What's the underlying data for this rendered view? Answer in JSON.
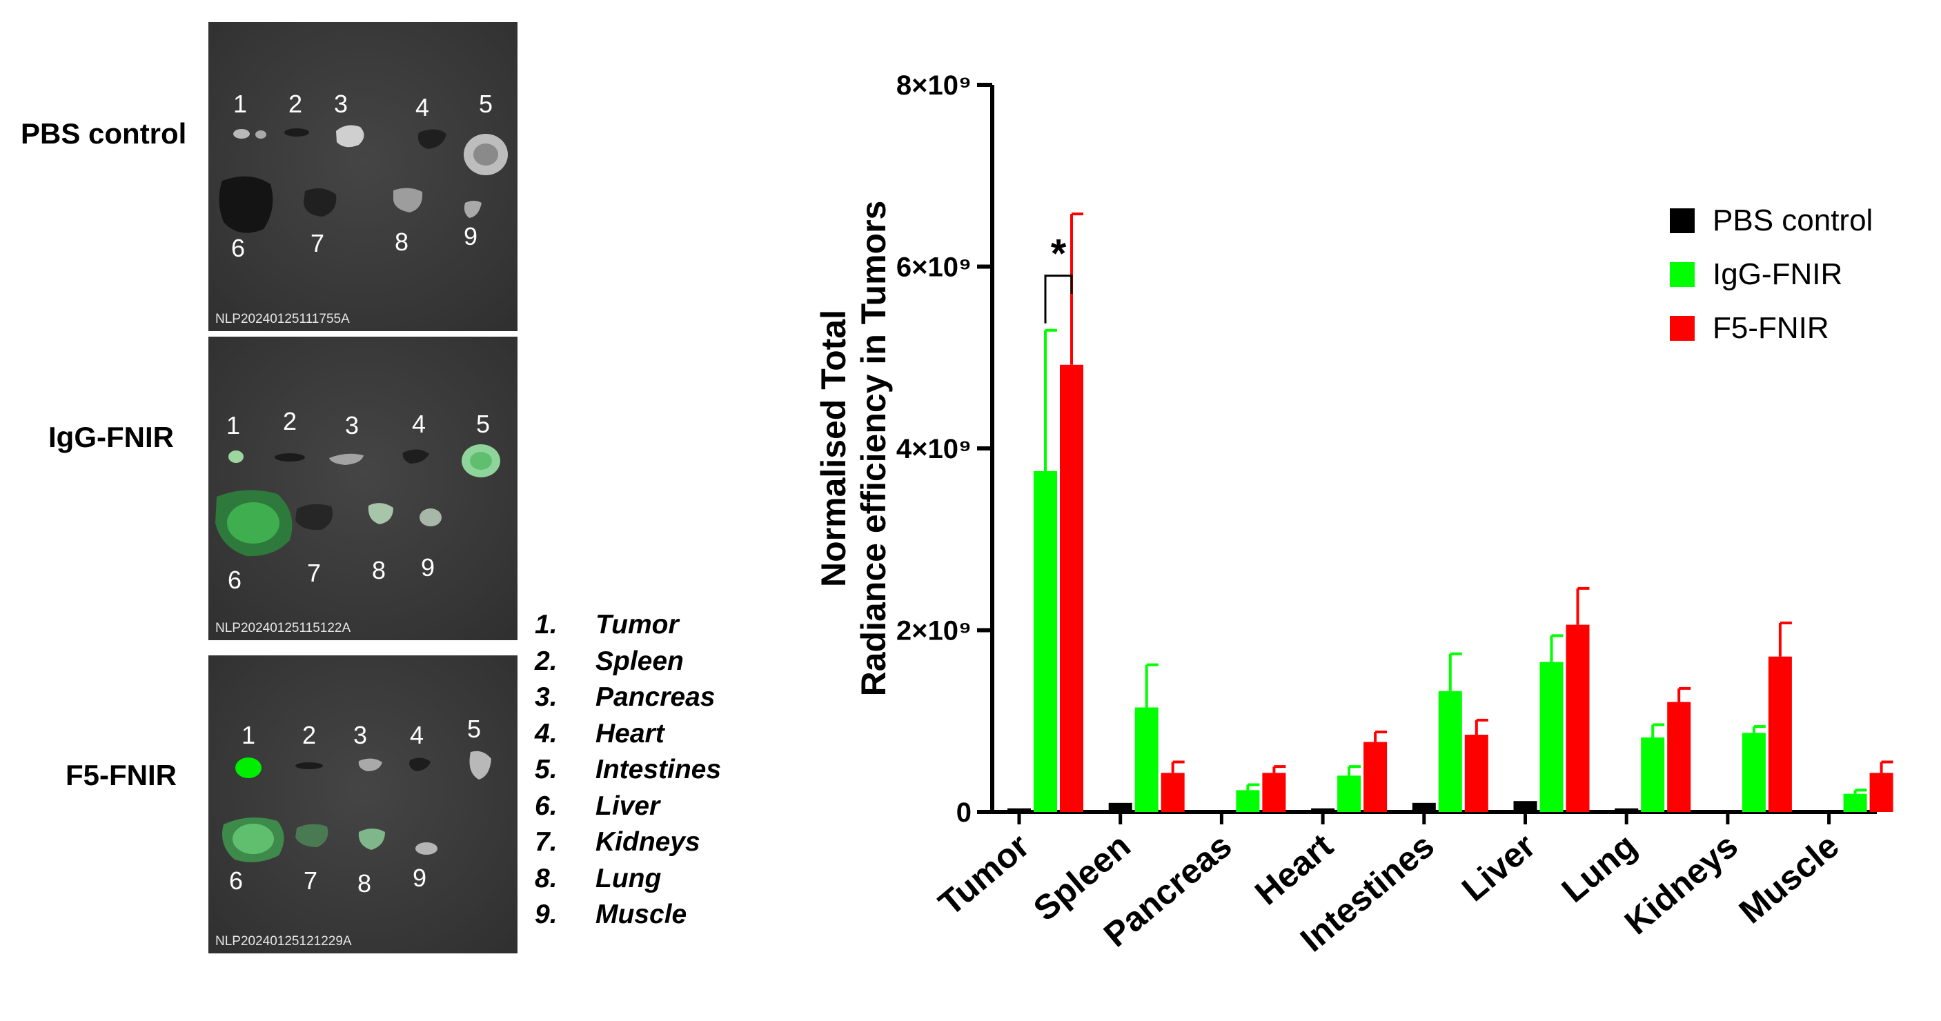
{
  "groups": [
    {
      "label": "PBS control",
      "image_id": "NLP20240125111755A"
    },
    {
      "label": "IgG-FNIR",
      "image_id": "NLP20240125115122A"
    },
    {
      "label": "F5-FNIR",
      "image_id": "NLP20240125121229A"
    }
  ],
  "organ_numbers": [
    "1",
    "2",
    "3",
    "4",
    "5",
    "6",
    "7",
    "8",
    "9"
  ],
  "organ_key": [
    {
      "num": "1.",
      "name": "Tumor"
    },
    {
      "num": "2.",
      "name": "Spleen"
    },
    {
      "num": "3.",
      "name": "Pancreas"
    },
    {
      "num": "4.",
      "name": "Heart"
    },
    {
      "num": "5.",
      "name": "Intestines"
    },
    {
      "num": "6.",
      "name": "Liver"
    },
    {
      "num": "7.",
      "name": "Kidneys"
    },
    {
      "num": "8.",
      "name": "Lung"
    },
    {
      "num": "9.",
      "name": "Muscle"
    }
  ],
  "chart_data": {
    "type": "bar",
    "title": "",
    "ylabel_line1": "Normalised Total",
    "ylabel_line2": "Radiance efficiency in  Tumors",
    "xlabel": "",
    "ylim": [
      0,
      8000000000
    ],
    "ytick_values": [
      0,
      2000000000,
      4000000000,
      6000000000,
      8000000000
    ],
    "ytick_labels": [
      "0",
      "2×10⁹",
      "4×10⁹",
      "6×10⁹",
      "8×10⁹"
    ],
    "categories": [
      "Tumor",
      "Spleen",
      "Pancreas",
      "Heart",
      "Intestines",
      "Liver",
      "Lung",
      "Kidneys",
      "Muscle"
    ],
    "series": [
      {
        "name": "PBS control",
        "color": "#000000",
        "values": [
          40000000,
          100000000,
          20000000,
          40000000,
          100000000,
          120000000,
          40000000,
          20000000,
          20000000
        ],
        "errors": [
          0,
          0,
          0,
          0,
          0,
          0,
          0,
          0,
          0
        ]
      },
      {
        "name": "IgG-FNIR",
        "color": "#00ff00",
        "values": [
          3750000000,
          1150000000,
          240000000,
          400000000,
          1330000000,
          1650000000,
          820000000,
          870000000,
          200000000
        ],
        "errors": [
          1550000000,
          470000000,
          60000000,
          100000000,
          410000000,
          290000000,
          140000000,
          70000000,
          40000000
        ]
      },
      {
        "name": "F5-FNIR",
        "color": "#ff0000",
        "values": [
          4920000000,
          430000000,
          430000000,
          770000000,
          850000000,
          2060000000,
          1210000000,
          1710000000,
          430000000
        ],
        "errors": [
          1660000000,
          120000000,
          70000000,
          110000000,
          160000000,
          400000000,
          150000000,
          370000000,
          120000000
        ]
      }
    ],
    "legend_position": "top-right",
    "significance": {
      "category": "Tumor",
      "label": "*",
      "between": [
        "IgG-FNIR",
        "F5-FNIR"
      ]
    }
  }
}
